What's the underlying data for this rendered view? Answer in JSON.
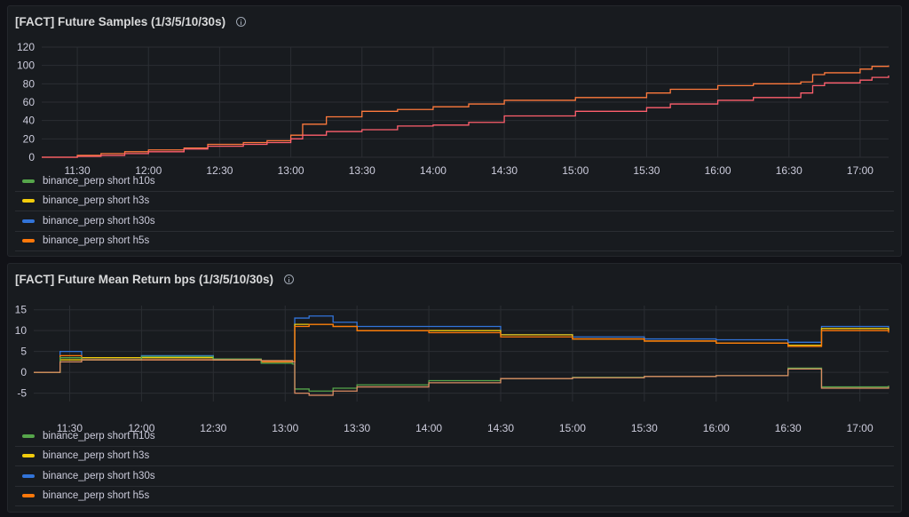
{
  "panels": [
    {
      "title": "[FACT] Future Samples (1/3/5/10/30s)",
      "legend": [
        {
          "label": "binance_perp short h10s",
          "color": "#56a64b"
        },
        {
          "label": "binance_perp short h3s",
          "color": "#f2cc0c"
        },
        {
          "label": "binance_perp short h30s",
          "color": "#3274d9"
        },
        {
          "label": "binance_perp short h5s",
          "color": "#ff780a"
        }
      ]
    },
    {
      "title": "[FACT] Future Mean Return bps (1/3/5/10/30s)",
      "legend": [
        {
          "label": "binance_perp short h10s",
          "color": "#56a64b"
        },
        {
          "label": "binance_perp short h3s",
          "color": "#f2cc0c"
        },
        {
          "label": "binance_perp short h30s",
          "color": "#3274d9"
        },
        {
          "label": "binance_perp short h5s",
          "color": "#ff780a"
        }
      ]
    }
  ],
  "chart_data": [
    {
      "type": "line",
      "title": "[FACT] Future Samples (1/3/5/10/30s)",
      "x_ticks": [
        "11:30",
        "12:00",
        "12:30",
        "13:00",
        "13:30",
        "14:00",
        "14:30",
        "15:00",
        "15:30",
        "16:00",
        "16:30",
        "17:00"
      ],
      "y_ticks": [
        0,
        20,
        40,
        60,
        80,
        100,
        120
      ],
      "ylim": [
        0,
        120
      ],
      "xlim": [
        "11:15",
        "17:12"
      ],
      "grid": true,
      "legend_position": "bottom",
      "series": [
        {
          "name": "binance_perp short h5s",
          "color": "#ff7a3d",
          "x": [
            "11:15",
            "11:22",
            "11:30",
            "11:40",
            "11:50",
            "12:00",
            "12:15",
            "12:25",
            "12:40",
            "12:50",
            "13:00",
            "13:05",
            "13:15",
            "13:30",
            "13:45",
            "14:00",
            "14:15",
            "14:30",
            "15:00",
            "15:30",
            "15:40",
            "16:00",
            "16:15",
            "16:35",
            "16:40",
            "16:45",
            "17:00",
            "17:05",
            "17:12"
          ],
          "values": [
            0,
            0,
            2,
            4,
            6,
            8,
            10,
            14,
            16,
            18,
            24,
            36,
            44,
            50,
            52,
            55,
            58,
            62,
            65,
            70,
            74,
            78,
            80,
            82,
            90,
            92,
            96,
            99,
            100
          ]
        },
        {
          "name": "binance_perp short h5s",
          "color": "#ff5f6d",
          "x": [
            "11:15",
            "11:22",
            "11:30",
            "11:40",
            "11:50",
            "12:00",
            "12:15",
            "12:25",
            "12:40",
            "12:50",
            "13:00",
            "13:05",
            "13:15",
            "13:30",
            "13:45",
            "14:00",
            "14:15",
            "14:30",
            "15:00",
            "15:30",
            "15:40",
            "16:00",
            "16:15",
            "16:35",
            "16:40",
            "16:45",
            "17:00",
            "17:05",
            "17:12"
          ],
          "values": [
            0,
            0,
            1,
            2,
            4,
            6,
            9,
            12,
            14,
            16,
            20,
            24,
            28,
            30,
            34,
            35,
            38,
            45,
            50,
            54,
            58,
            62,
            65,
            70,
            78,
            81,
            84,
            87,
            89
          ]
        }
      ]
    },
    {
      "type": "line",
      "title": "[FACT] Future Mean Return bps (1/3/5/10/30s)",
      "x_ticks": [
        "11:30",
        "12:00",
        "12:30",
        "13:00",
        "13:30",
        "14:00",
        "14:30",
        "15:00",
        "15:30",
        "16:00",
        "16:30",
        "17:00"
      ],
      "y_ticks": [
        -5,
        0,
        5,
        10,
        15
      ],
      "ylim": [
        -7,
        16
      ],
      "xlim": [
        "11:15",
        "17:12"
      ],
      "grid": true,
      "legend_position": "bottom",
      "series": [
        {
          "name": "binance_perp short h30s",
          "color": "#3274d9",
          "x": [
            "11:15",
            "11:24",
            "11:26",
            "11:35",
            "12:00",
            "12:30",
            "12:50",
            "13:03",
            "13:04",
            "13:10",
            "13:20",
            "13:30",
            "14:00",
            "14:30",
            "15:00",
            "15:30",
            "16:00",
            "16:30",
            "16:42",
            "16:44",
            "17:00",
            "17:12"
          ],
          "values": [
            0,
            0,
            5,
            3.5,
            4,
            3,
            2.5,
            2.5,
            13,
            13.5,
            12,
            11,
            11,
            9,
            8.5,
            8,
            7.8,
            7.2,
            7.2,
            11,
            11,
            10
          ]
        },
        {
          "name": "binance_perp short h3s",
          "color": "#f2cc0c",
          "x": [
            "11:15",
            "11:24",
            "11:26",
            "11:35",
            "12:00",
            "12:30",
            "12:50",
            "13:03",
            "13:04",
            "13:10",
            "13:20",
            "13:30",
            "14:00",
            "14:30",
            "15:00",
            "15:30",
            "16:00",
            "16:30",
            "16:42",
            "16:44",
            "17:00",
            "17:12"
          ],
          "values": [
            0,
            0,
            3,
            3.5,
            3.5,
            3,
            2.8,
            2.5,
            11.5,
            11.5,
            11,
            10,
            10,
            9,
            8,
            7.5,
            7,
            6.5,
            6.5,
            10.5,
            10.5,
            9.8
          ]
        },
        {
          "name": "binance_perp short h5s",
          "color": "#ff780a",
          "x": [
            "11:15",
            "11:24",
            "11:26",
            "11:35",
            "12:00",
            "12:30",
            "12:50",
            "13:03",
            "13:04",
            "13:10",
            "13:20",
            "13:30",
            "14:00",
            "14:30",
            "15:00",
            "15:30",
            "16:00",
            "16:30",
            "16:42",
            "16:44",
            "17:00",
            "17:12"
          ],
          "values": [
            0,
            0,
            4,
            3,
            3,
            3,
            2.5,
            2.5,
            11,
            11.5,
            11,
            10,
            9.5,
            8.5,
            8,
            7.5,
            7,
            6.2,
            6.2,
            10,
            10,
            9.5
          ]
        },
        {
          "name": "binance_perp short h10s",
          "color": "#56a64b",
          "x": [
            "11:15",
            "11:24",
            "11:26",
            "11:35",
            "12:00",
            "12:30",
            "12:50",
            "13:03",
            "13:04",
            "13:10",
            "13:20",
            "13:30",
            "14:00",
            "14:30",
            "15:00",
            "15:30",
            "16:00",
            "16:30",
            "16:42",
            "16:44",
            "17:00",
            "17:12"
          ],
          "values": [
            0,
            0,
            3.5,
            3,
            3.8,
            3.2,
            2.2,
            2,
            -4,
            -4.5,
            -3.8,
            -3,
            -2,
            -1.5,
            -1.2,
            -1,
            -0.8,
            1,
            1,
            -3.5,
            -3.5,
            -3.2
          ]
        },
        {
          "name": "binance_perp short h5s",
          "color": "#d98b63",
          "x": [
            "11:15",
            "11:24",
            "11:26",
            "11:35",
            "12:00",
            "12:30",
            "12:50",
            "13:03",
            "13:04",
            "13:10",
            "13:20",
            "13:30",
            "14:00",
            "14:30",
            "15:00",
            "15:30",
            "16:00",
            "16:30",
            "16:42",
            "16:44",
            "17:00",
            "17:12"
          ],
          "values": [
            0,
            0,
            2.5,
            3,
            3,
            3,
            2.8,
            2.5,
            -5,
            -5.5,
            -4.5,
            -3.5,
            -2.5,
            -1.5,
            -1.3,
            -1,
            -0.8,
            0.8,
            0.8,
            -3.8,
            -3.8,
            -3.5
          ]
        }
      ]
    }
  ]
}
